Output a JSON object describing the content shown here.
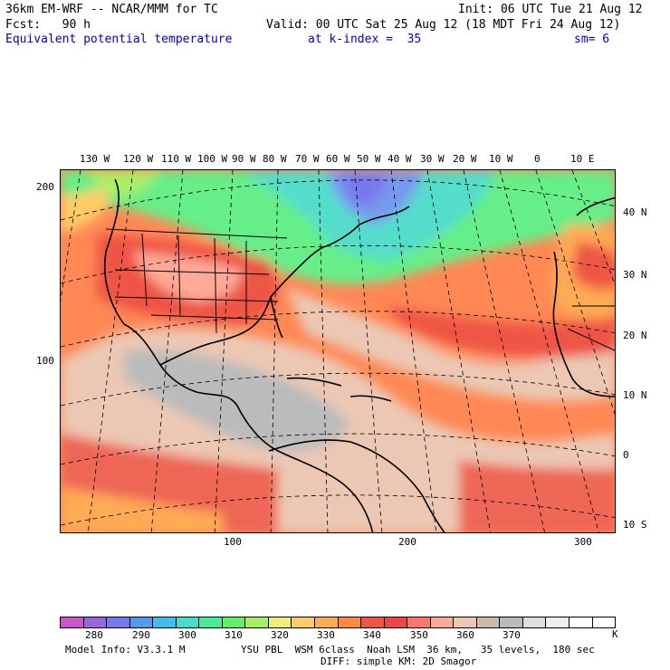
{
  "header": {
    "line1_left": "36km EM-WRF -- NCAR/MMM for TC",
    "line1_right": "Init: 06 UTC Tue 21 Aug 12",
    "line2_left": "Fcst:   90 h",
    "line2_right": "Valid: 00 UTC Sat 25 Aug 12 (18 MDT Fri 24 Aug 12)",
    "line3_field": "Equivalent potential temperature",
    "line3_level": "at k-index =  35",
    "line3_sm": "sm= 6"
  },
  "map": {
    "lon_labels": [
      "130 W",
      "120 W",
      "110 W",
      "100 W",
      "90 W",
      "80 W",
      "70 W",
      "60 W",
      "50 W",
      "40 W",
      "30 W",
      "20 W",
      "10 W",
      "0",
      "10 E"
    ],
    "lat_labels": [
      "40 N",
      "30 N",
      "20 N",
      "10 N",
      "0",
      "10 S"
    ],
    "grid_left_labels": [
      "200",
      "100"
    ],
    "grid_bottom_labels": [
      "100",
      "200",
      "300"
    ]
  },
  "colorbar": {
    "colors": [
      "#cc55cc",
      "#9966dd",
      "#7777ee",
      "#5599ee",
      "#44bbee",
      "#44ddcc",
      "#44ee99",
      "#66ee66",
      "#aaee66",
      "#eeee77",
      "#ffcc66",
      "#ffaa55",
      "#ff8844",
      "#ee5544",
      "#ee4444",
      "#ff7766",
      "#ffaa99",
      "#ecc8b4",
      "#ccbbaa",
      "#bbbbbb",
      "#dddddd",
      "#eeeeee",
      "#ffffff",
      "#ffffff"
    ],
    "labels": [
      "280",
      "290",
      "300",
      "310",
      "320",
      "330",
      "340",
      "350",
      "360",
      "370"
    ],
    "unit": "K"
  },
  "footer": {
    "model_info": "Model Info: V3.3.1 M",
    "physics": "YSU PBL  WSM 6class  Noah LSM  36 km,   35 levels,  180 sec",
    "diffusion": "DIFF: simple KM: 2D Smagor"
  }
}
